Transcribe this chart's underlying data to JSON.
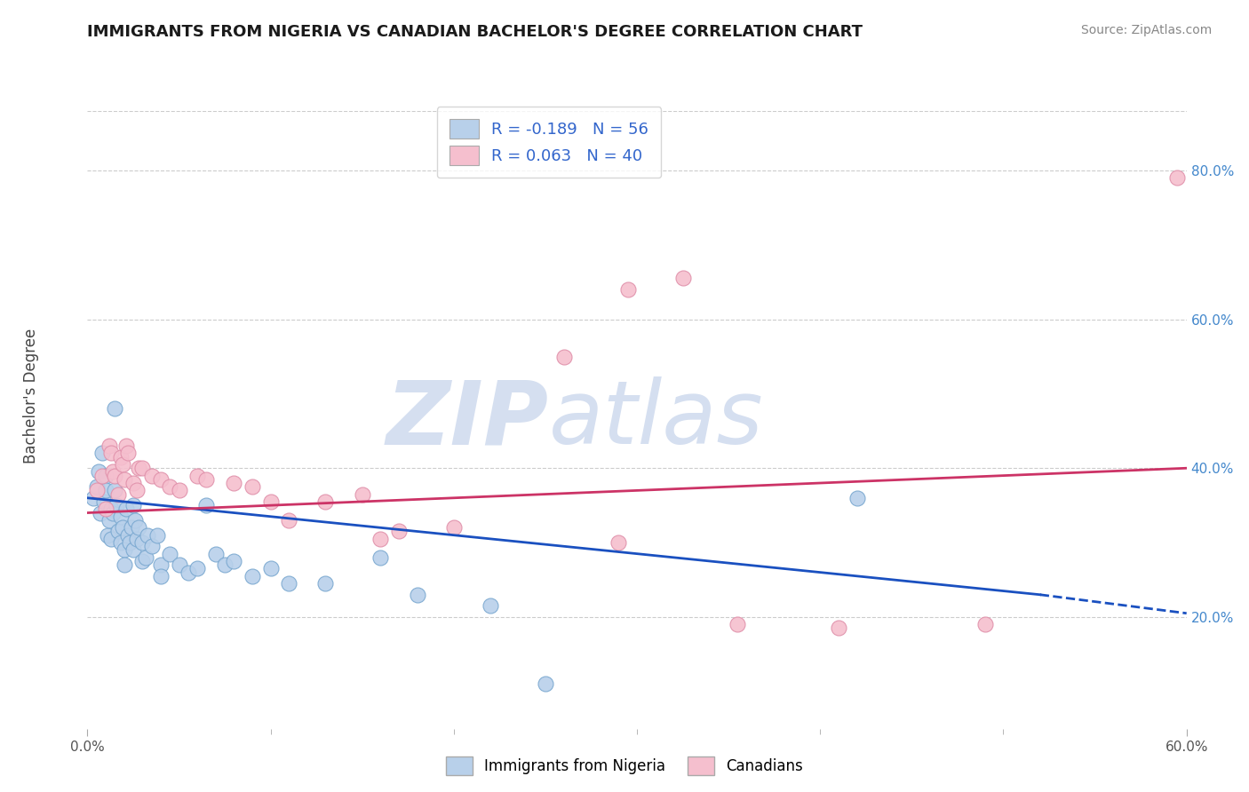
{
  "title": "IMMIGRANTS FROM NIGERIA VS CANADIAN BACHELOR'S DEGREE CORRELATION CHART",
  "source_text": "Source: ZipAtlas.com",
  "ylabel": "Bachelor's Degree",
  "xlim": [
    0.0,
    0.6
  ],
  "ylim": [
    0.05,
    0.88
  ],
  "x_ticks": [
    0.0,
    0.6
  ],
  "x_tick_labels": [
    "0.0%",
    "60.0%"
  ],
  "y_ticks": [
    0.2,
    0.4,
    0.6,
    0.8
  ],
  "y_tick_labels": [
    "20.0%",
    "40.0%",
    "60.0%",
    "80.0%"
  ],
  "legend_entries": [
    {
      "label": "R = -0.189   N = 56",
      "patch_color": "#b8d0ea",
      "text_color": "#3366cc"
    },
    {
      "label": "R = 0.063   N = 40",
      "patch_color": "#f5bfce",
      "text_color": "#3366cc"
    }
  ],
  "bottom_legend": [
    {
      "label": "Immigrants from Nigeria",
      "color": "#b8d0ea"
    },
    {
      "label": "Canadians",
      "color": "#f5bfce"
    }
  ],
  "blue_line": {
    "x0": 0.0,
    "y0": 0.36,
    "x1": 0.52,
    "y1": 0.23
  },
  "pink_line": {
    "x0": 0.0,
    "y0": 0.34,
    "x1": 0.6,
    "y1": 0.4
  },
  "blue_dashed_line": {
    "x0": 0.52,
    "y0": 0.23,
    "x1": 0.6,
    "y1": 0.205
  },
  "blue_scatter_color": "#b8d0ea",
  "blue_edge_color": "#7aa8d0",
  "pink_scatter_color": "#f5bfce",
  "pink_edge_color": "#e090aa",
  "blue_line_color": "#1a50c0",
  "pink_line_color": "#cc3366",
  "watermark_color": "#d5dff0",
  "grid_color": "#cccccc",
  "blue_points": [
    [
      0.003,
      0.36
    ],
    [
      0.005,
      0.375
    ],
    [
      0.006,
      0.395
    ],
    [
      0.007,
      0.34
    ],
    [
      0.008,
      0.42
    ],
    [
      0.009,
      0.355
    ],
    [
      0.01,
      0.39
    ],
    [
      0.01,
      0.37
    ],
    [
      0.011,
      0.31
    ],
    [
      0.012,
      0.33
    ],
    [
      0.013,
      0.345
    ],
    [
      0.013,
      0.305
    ],
    [
      0.014,
      0.34
    ],
    [
      0.015,
      0.37
    ],
    [
      0.015,
      0.48
    ],
    [
      0.016,
      0.35
    ],
    [
      0.017,
      0.315
    ],
    [
      0.018,
      0.335
    ],
    [
      0.018,
      0.3
    ],
    [
      0.019,
      0.32
    ],
    [
      0.02,
      0.29
    ],
    [
      0.02,
      0.27
    ],
    [
      0.021,
      0.345
    ],
    [
      0.022,
      0.31
    ],
    [
      0.023,
      0.3
    ],
    [
      0.024,
      0.32
    ],
    [
      0.025,
      0.35
    ],
    [
      0.025,
      0.29
    ],
    [
      0.026,
      0.33
    ],
    [
      0.027,
      0.305
    ],
    [
      0.028,
      0.32
    ],
    [
      0.03,
      0.3
    ],
    [
      0.03,
      0.275
    ],
    [
      0.032,
      0.28
    ],
    [
      0.033,
      0.31
    ],
    [
      0.035,
      0.295
    ],
    [
      0.038,
      0.31
    ],
    [
      0.04,
      0.27
    ],
    [
      0.04,
      0.255
    ],
    [
      0.045,
      0.285
    ],
    [
      0.05,
      0.27
    ],
    [
      0.055,
      0.26
    ],
    [
      0.06,
      0.265
    ],
    [
      0.065,
      0.35
    ],
    [
      0.07,
      0.285
    ],
    [
      0.075,
      0.27
    ],
    [
      0.08,
      0.275
    ],
    [
      0.09,
      0.255
    ],
    [
      0.1,
      0.265
    ],
    [
      0.11,
      0.245
    ],
    [
      0.13,
      0.245
    ],
    [
      0.16,
      0.28
    ],
    [
      0.18,
      0.23
    ],
    [
      0.22,
      0.215
    ],
    [
      0.25,
      0.11
    ],
    [
      0.42,
      0.36
    ]
  ],
  "pink_points": [
    [
      0.005,
      0.37
    ],
    [
      0.008,
      0.39
    ],
    [
      0.01,
      0.345
    ],
    [
      0.012,
      0.43
    ],
    [
      0.013,
      0.42
    ],
    [
      0.014,
      0.395
    ],
    [
      0.015,
      0.39
    ],
    [
      0.017,
      0.365
    ],
    [
      0.018,
      0.415
    ],
    [
      0.019,
      0.405
    ],
    [
      0.02,
      0.385
    ],
    [
      0.021,
      0.43
    ],
    [
      0.022,
      0.42
    ],
    [
      0.025,
      0.38
    ],
    [
      0.027,
      0.37
    ],
    [
      0.028,
      0.4
    ],
    [
      0.03,
      0.4
    ],
    [
      0.035,
      0.39
    ],
    [
      0.04,
      0.385
    ],
    [
      0.045,
      0.375
    ],
    [
      0.05,
      0.37
    ],
    [
      0.06,
      0.39
    ],
    [
      0.065,
      0.385
    ],
    [
      0.08,
      0.38
    ],
    [
      0.09,
      0.375
    ],
    [
      0.1,
      0.355
    ],
    [
      0.11,
      0.33
    ],
    [
      0.13,
      0.355
    ],
    [
      0.15,
      0.365
    ],
    [
      0.16,
      0.305
    ],
    [
      0.17,
      0.315
    ],
    [
      0.2,
      0.32
    ],
    [
      0.26,
      0.55
    ],
    [
      0.29,
      0.3
    ],
    [
      0.295,
      0.64
    ],
    [
      0.325,
      0.655
    ],
    [
      0.355,
      0.19
    ],
    [
      0.41,
      0.185
    ],
    [
      0.49,
      0.19
    ],
    [
      0.595,
      0.79
    ]
  ]
}
